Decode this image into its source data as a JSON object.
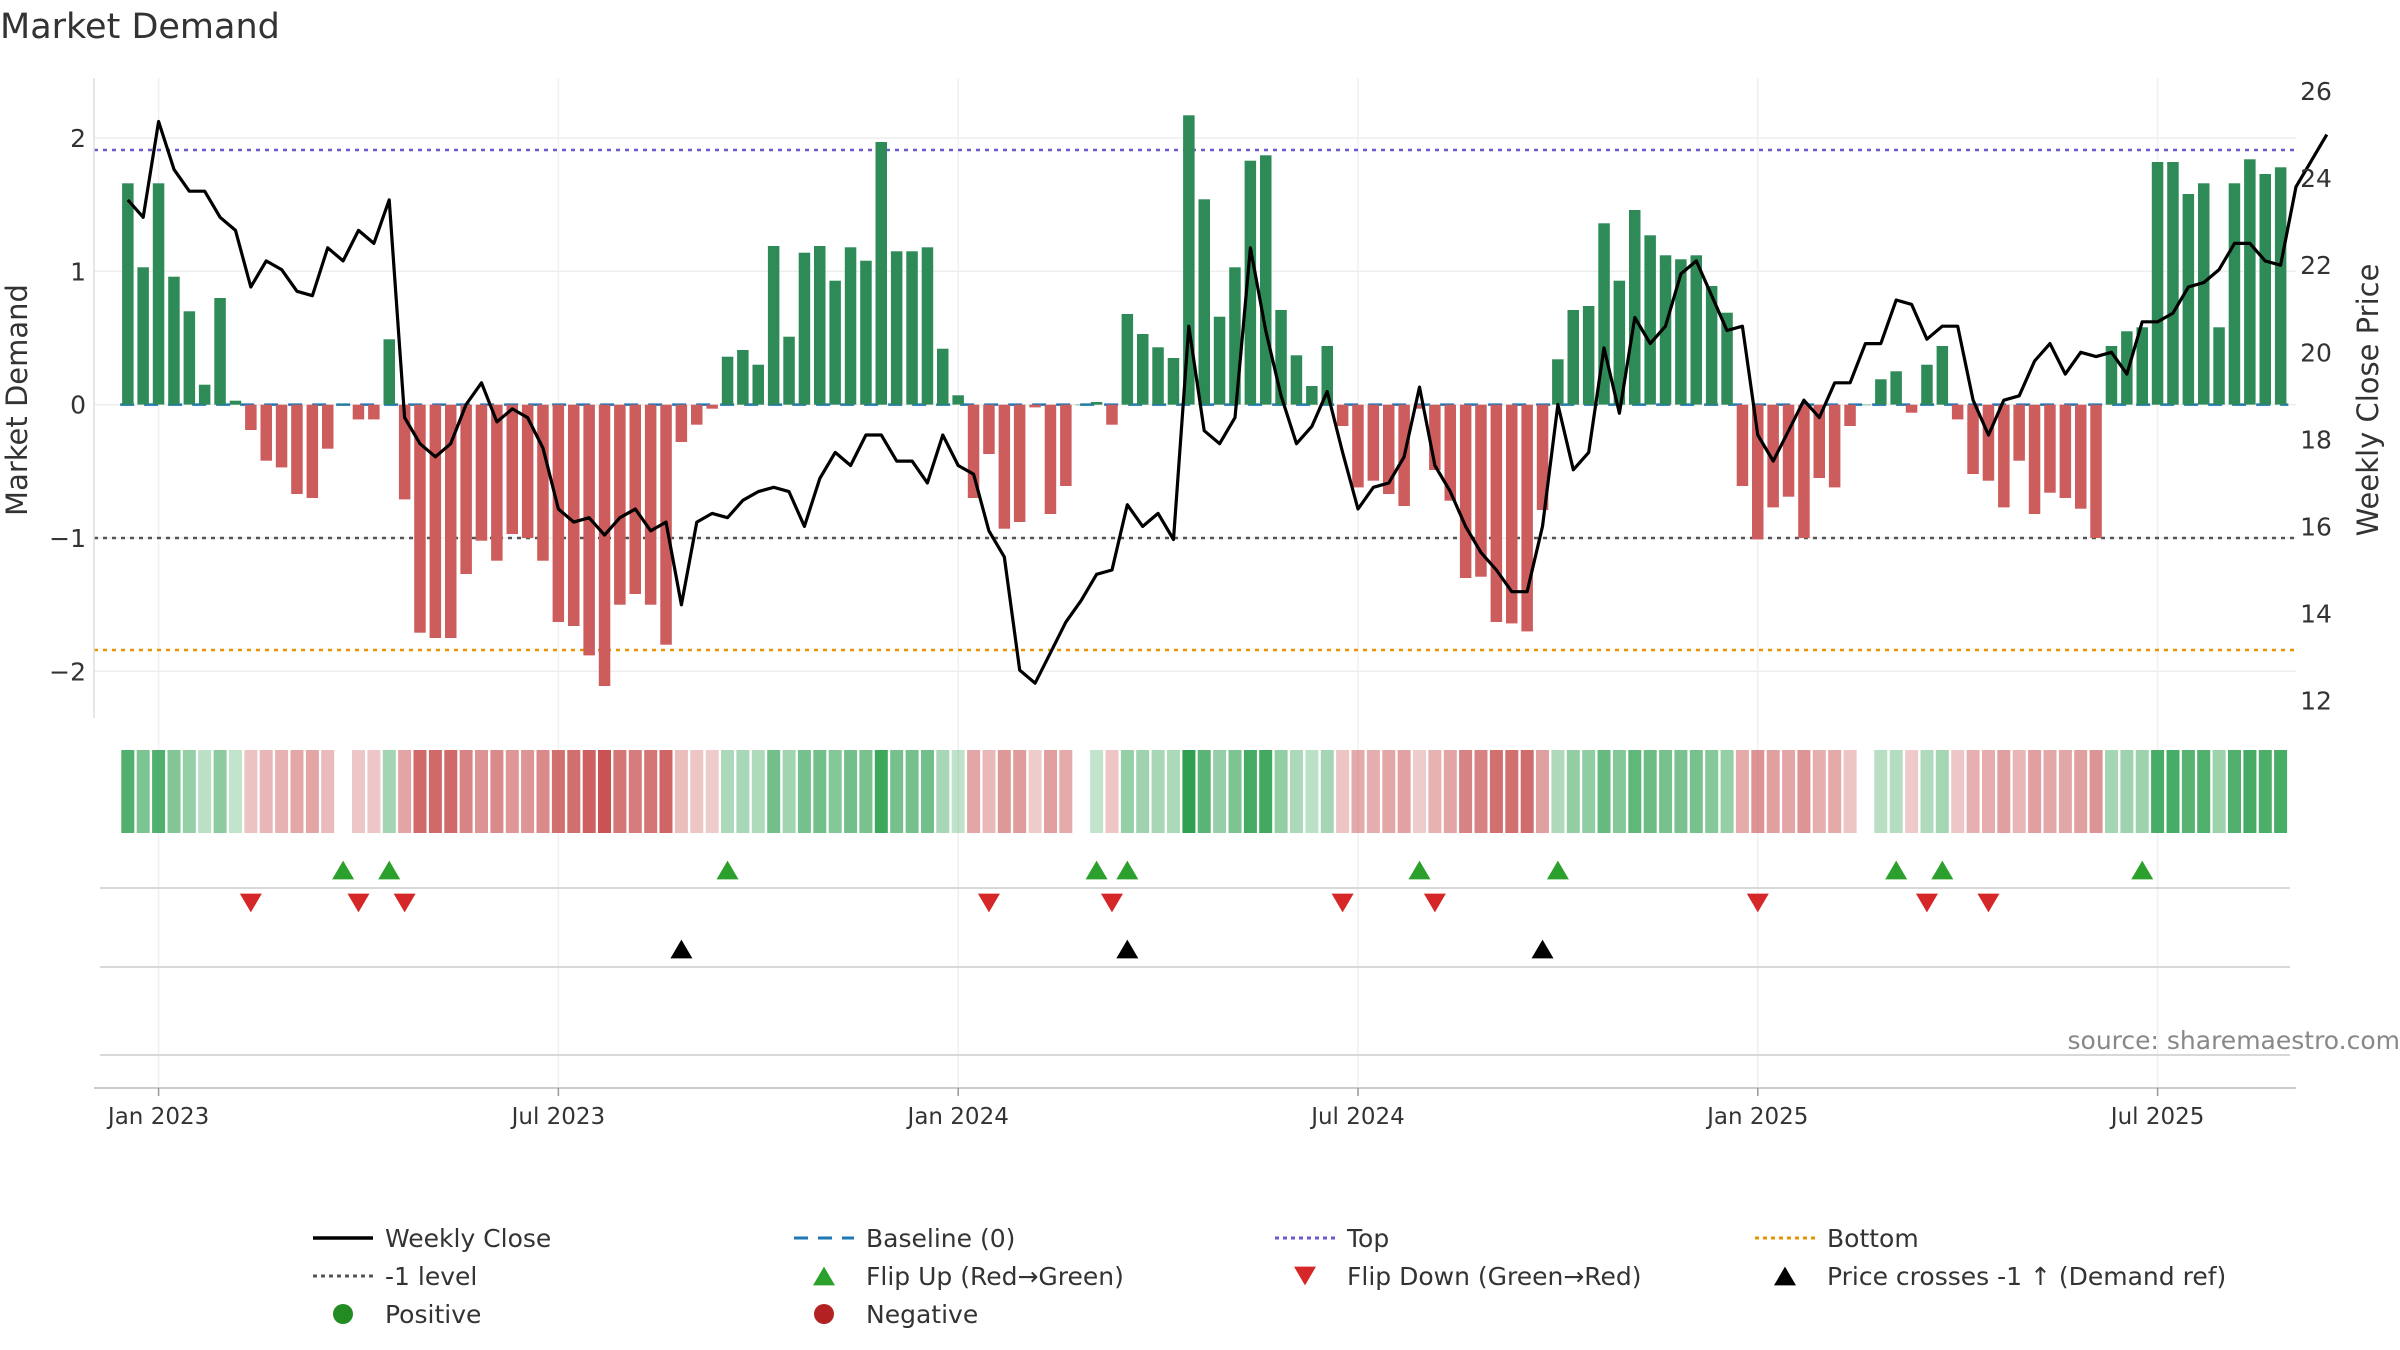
{
  "chart_data": {
    "type": "bar",
    "title": "Market Demand",
    "ylabel": "Market Demand",
    "y2label": "Weekly Close Price",
    "ylim": [
      -2.35,
      2.45
    ],
    "y2lim": [
      11.6,
      26.3
    ],
    "yticks": [
      -2,
      -1,
      0,
      1,
      2
    ],
    "ytick_labels": [
      "−2",
      "−1",
      "0",
      "1",
      "2"
    ],
    "y2ticks": [
      12,
      14,
      16,
      18,
      20,
      22,
      24,
      26
    ],
    "y2tick_labels": [
      "12",
      "14",
      "16",
      "18",
      "20",
      "22",
      "24",
      "26"
    ],
    "xlim": [
      -2.2,
      141
    ],
    "xticks": [
      {
        "week": 2,
        "label": "Jan 2023"
      },
      {
        "week": 28,
        "label": "Jul 2023"
      },
      {
        "week": 54,
        "label": "Jan 2024"
      },
      {
        "week": 80,
        "label": "Jul 2024"
      },
      {
        "week": 106,
        "label": "Jan 2025"
      },
      {
        "week": 132,
        "label": "Jul 2025"
      }
    ],
    "reference_lines": {
      "top": 1.91,
      "minus_one": -1.0,
      "bottom": -1.84,
      "baseline": 0
    },
    "series": [
      {
        "name": "Market Demand",
        "values": [
          1.66,
          1.03,
          1.66,
          0.96,
          0.7,
          0.15,
          0.8,
          0.03,
          -0.19,
          -0.42,
          -0.47,
          -0.67,
          -0.7,
          -0.33,
          0.0,
          -0.11,
          -0.11,
          0.49,
          -0.71,
          -1.71,
          -1.75,
          -1.75,
          -1.27,
          -1.02,
          -1.17,
          -0.97,
          -1.0,
          -1.17,
          -1.63,
          -1.66,
          -1.88,
          -2.11,
          -1.5,
          -1.42,
          -1.5,
          -1.8,
          -0.28,
          -0.15,
          -0.03,
          0.36,
          0.41,
          0.3,
          1.19,
          0.51,
          1.14,
          1.19,
          0.93,
          1.18,
          1.08,
          1.97,
          1.15,
          1.15,
          1.18,
          0.42,
          0.07,
          -0.7,
          -0.37,
          -0.93,
          -0.88,
          -0.02,
          -0.82,
          -0.61,
          0.0,
          0.02,
          -0.15,
          0.68,
          0.53,
          0.43,
          0.35,
          2.17,
          1.54,
          0.66,
          1.03,
          1.83,
          1.87,
          0.71,
          0.37,
          0.14,
          0.44,
          -0.16,
          -0.62,
          -0.57,
          -0.67,
          -0.76,
          -0.03,
          -0.49,
          -0.72,
          -1.3,
          -1.29,
          -1.63,
          -1.64,
          -1.7,
          -0.79,
          0.34,
          0.71,
          0.74,
          1.36,
          0.93,
          1.46,
          1.27,
          1.12,
          1.09,
          1.12,
          0.89,
          0.69,
          -0.61,
          -1.01,
          -0.77,
          -0.69,
          -1.0,
          -0.55,
          -0.62,
          -0.16,
          0.0,
          0.19,
          0.25,
          -0.06,
          0.3,
          0.44,
          -0.11,
          -0.52,
          -0.57,
          -0.77,
          -0.42,
          -0.82,
          -0.66,
          -0.7,
          -0.78,
          -1.0,
          0.44,
          0.55,
          0.58,
          1.82,
          1.82,
          1.58,
          1.66,
          0.58,
          1.66,
          1.84,
          1.73,
          1.78
        ]
      },
      {
        "name": "Weekly Close",
        "axis": "right",
        "values": [
          23.5,
          23.1,
          25.3,
          24.2,
          23.7,
          23.7,
          23.1,
          22.8,
          21.5,
          22.1,
          21.9,
          21.4,
          21.3,
          22.4,
          22.1,
          22.8,
          22.5,
          23.5,
          18.5,
          17.9,
          17.6,
          17.9,
          18.8,
          19.3,
          18.4,
          18.7,
          18.5,
          17.8,
          16.4,
          16.1,
          16.2,
          15.8,
          16.2,
          16.4,
          15.9,
          16.1,
          14.2,
          16.1,
          16.3,
          16.2,
          16.6,
          16.8,
          16.9,
          16.8,
          16.0,
          17.1,
          17.7,
          17.4,
          18.1,
          18.1,
          17.5,
          17.5,
          17.0,
          18.1,
          17.4,
          17.2,
          15.9,
          15.3,
          12.7,
          12.4,
          13.1,
          13.8,
          14.3,
          14.9,
          15.0,
          16.5,
          16.0,
          16.3,
          15.7,
          20.6,
          18.2,
          17.9,
          18.5,
          22.4,
          20.5,
          19.0,
          17.9,
          18.3,
          19.1,
          17.7,
          16.4,
          16.9,
          17.0,
          17.6,
          19.2,
          17.4,
          16.8,
          16.0,
          15.4,
          15.0,
          14.5,
          14.5,
          16.0,
          18.8,
          17.3,
          17.7,
          20.1,
          18.6,
          20.8,
          20.2,
          20.6,
          21.8,
          22.1,
          21.3,
          20.5,
          20.6,
          18.1,
          17.5,
          18.2,
          18.9,
          18.5,
          19.3,
          19.3,
          20.2,
          20.2,
          21.2,
          21.1,
          20.3,
          20.6,
          20.6,
          18.9,
          18.1,
          18.9,
          19.0,
          19.8,
          20.2,
          19.5,
          20.0,
          19.9,
          20.0,
          19.5,
          20.7,
          20.7,
          20.9,
          21.5,
          21.6,
          21.9,
          22.5,
          22.5,
          22.1,
          22.0,
          23.8,
          24.4,
          25.0
        ]
      }
    ],
    "flip_up_weeks": [
      14,
      17,
      39,
      63,
      65,
      84,
      93,
      115,
      118,
      131
    ],
    "flip_down_weeks": [
      8,
      15,
      18,
      56,
      64,
      79,
      85,
      106,
      117,
      121
    ],
    "price_cross_weeks": [
      36,
      65,
      92
    ],
    "source_text": "source: sharemaestro.com",
    "legend": {
      "position": "bottom",
      "items": [
        {
          "label": "Weekly Close",
          "marker": "line",
          "color": "#000000"
        },
        {
          "label": "Baseline (0)",
          "marker": "dash",
          "color": "#1f77b4"
        },
        {
          "label": "Top",
          "marker": "dot-line",
          "color": "#6a5acd"
        },
        {
          "label": "Bottom",
          "marker": "dot-line",
          "color": "#e69500"
        },
        {
          "label": "-1 level",
          "marker": "dot-line",
          "color": "#555555"
        },
        {
          "label": "Flip Up (Red→Green)",
          "marker": "triangle-up",
          "color": "#2ca02c"
        },
        {
          "label": "Flip Down (Green→Red)",
          "marker": "triangle-down",
          "color": "#d62728"
        },
        {
          "label": "Price crosses -1 ↑ (Demand ref)",
          "marker": "triangle-up",
          "color": "#000000"
        },
        {
          "label": "Positive",
          "marker": "circle",
          "color": "#228b22"
        },
        {
          "label": "Negative",
          "marker": "circle",
          "color": "#b22222"
        }
      ]
    },
    "colors": {
      "positive_bar": "#2e8b57",
      "negative_bar": "#cd5c5c",
      "price_line": "#000000",
      "grid": "#eeeeee",
      "axis_text": "#333333",
      "source_text": "#888888"
    }
  }
}
